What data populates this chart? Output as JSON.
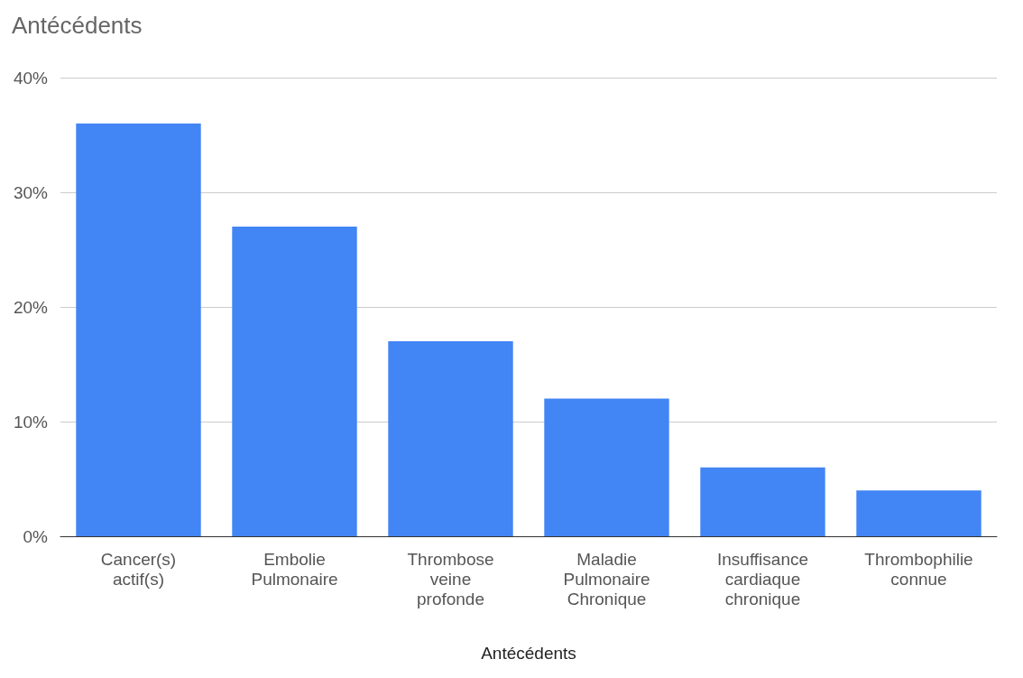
{
  "chart_data": {
    "type": "bar",
    "title": "Antécédents",
    "xlabel": "Antécédents",
    "categories": [
      "Cancer(s)\nactif(s)",
      "Embolie\nPulmonaire",
      "Thrombose\nveine\nprofonde",
      "Maladie\nPulmonaire\nChronique",
      "Insuffisance\ncardiaque\nchronique",
      "Thrombophilie\nconnue"
    ],
    "values": [
      36,
      27,
      17,
      12,
      6,
      4
    ],
    "color": "#4285f4",
    "ylim": [
      0,
      40
    ],
    "yticks": [
      {
        "value": 0,
        "label": "0%"
      },
      {
        "value": 10,
        "label": "10%"
      },
      {
        "value": 20,
        "label": "20%"
      },
      {
        "value": 30,
        "label": "30%"
      },
      {
        "value": 40,
        "label": "40%"
      }
    ],
    "grid": "y"
  }
}
